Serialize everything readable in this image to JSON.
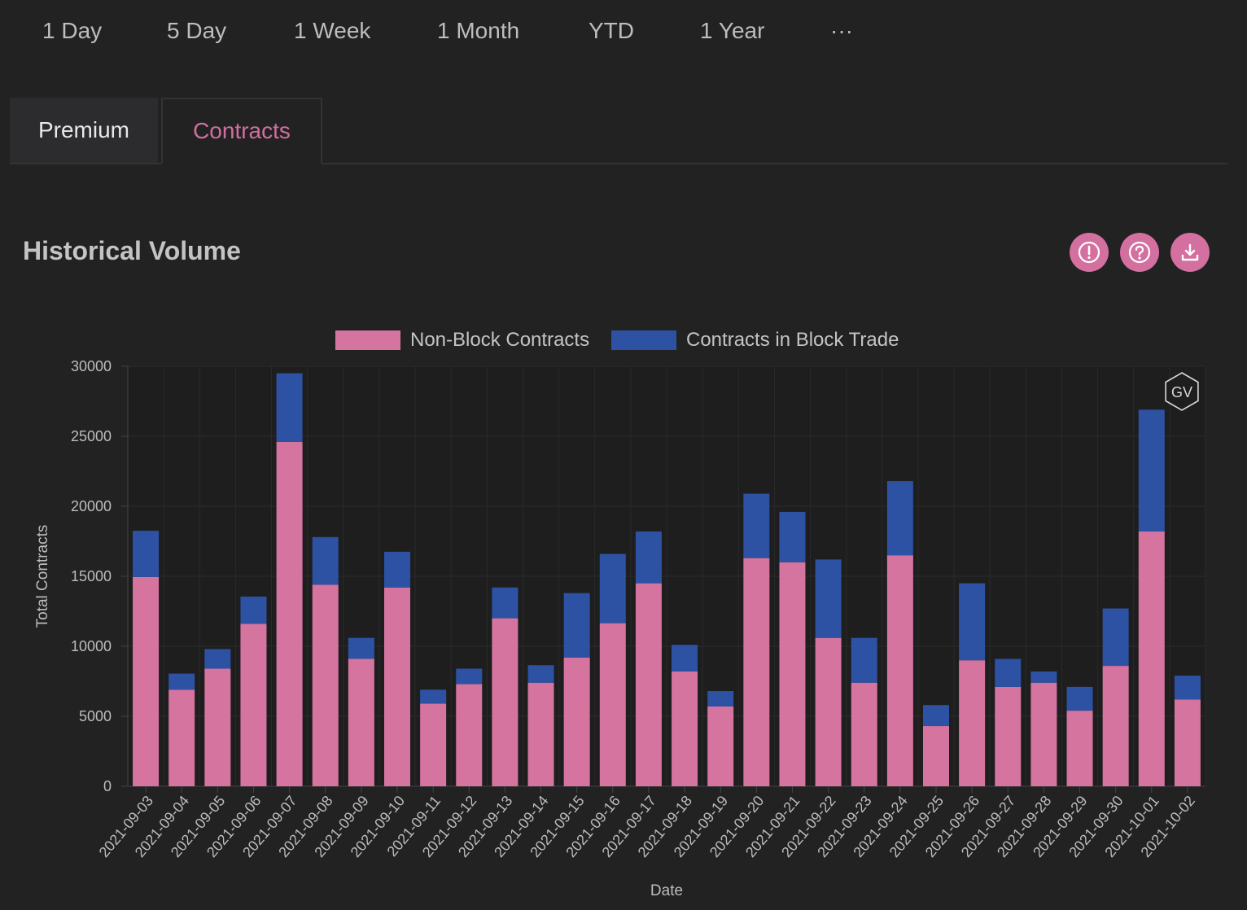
{
  "range_options": [
    "1 Day",
    "5 Day",
    "1 Week",
    "1 Month",
    "YTD",
    "1 Year",
    "···"
  ],
  "tabs": [
    {
      "label": "Premium",
      "active": false
    },
    {
      "label": "Contracts",
      "active": true
    }
  ],
  "section": {
    "title": "Historical Volume",
    "actions": [
      {
        "icon": "info-icon"
      },
      {
        "icon": "help-icon"
      },
      {
        "icon": "download-icon"
      }
    ]
  },
  "watermark": "GV",
  "colors": {
    "non_block": "#d4749f",
    "block": "#2d52a3",
    "accent": "#d06f9f"
  },
  "chart_data": {
    "type": "bar",
    "stacked": true,
    "xlabel": "Date",
    "ylabel": "Total Contracts",
    "ylim": [
      0,
      30000
    ],
    "yticks": [
      0,
      5000,
      10000,
      15000,
      20000,
      25000,
      30000
    ],
    "legend_position": "top-center",
    "grid": true,
    "categories": [
      "2021-09-03",
      "2021-09-04",
      "2021-09-05",
      "2021-09-06",
      "2021-09-07",
      "2021-09-08",
      "2021-09-09",
      "2021-09-10",
      "2021-09-11",
      "2021-09-12",
      "2021-09-13",
      "2021-09-14",
      "2021-09-15",
      "2021-09-16",
      "2021-09-17",
      "2021-09-18",
      "2021-09-19",
      "2021-09-20",
      "2021-09-21",
      "2021-09-22",
      "2021-09-23",
      "2021-09-24",
      "2021-09-25",
      "2021-09-26",
      "2021-09-27",
      "2021-09-28",
      "2021-09-29",
      "2021-09-30",
      "2021-10-01",
      "2021-10-02"
    ],
    "series": [
      {
        "name": "Non-Block Contracts",
        "values": [
          14950,
          6900,
          8400,
          11600,
          24600,
          14400,
          9100,
          14200,
          5900,
          7300,
          12000,
          7400,
          9200,
          11650,
          14500,
          8200,
          5700,
          16300,
          16000,
          10600,
          7400,
          16500,
          4300,
          9000,
          7100,
          7400,
          5400,
          8600,
          18200,
          6200
        ]
      },
      {
        "name": "Contracts in Block Trade",
        "values": [
          3300,
          1150,
          1400,
          1950,
          4900,
          3400,
          1500,
          2550,
          1000,
          1100,
          2200,
          1250,
          4600,
          4950,
          3700,
          1900,
          1100,
          4600,
          3600,
          5600,
          3200,
          5300,
          1500,
          5500,
          2000,
          800,
          1700,
          4100,
          8700,
          1700
        ]
      }
    ]
  }
}
